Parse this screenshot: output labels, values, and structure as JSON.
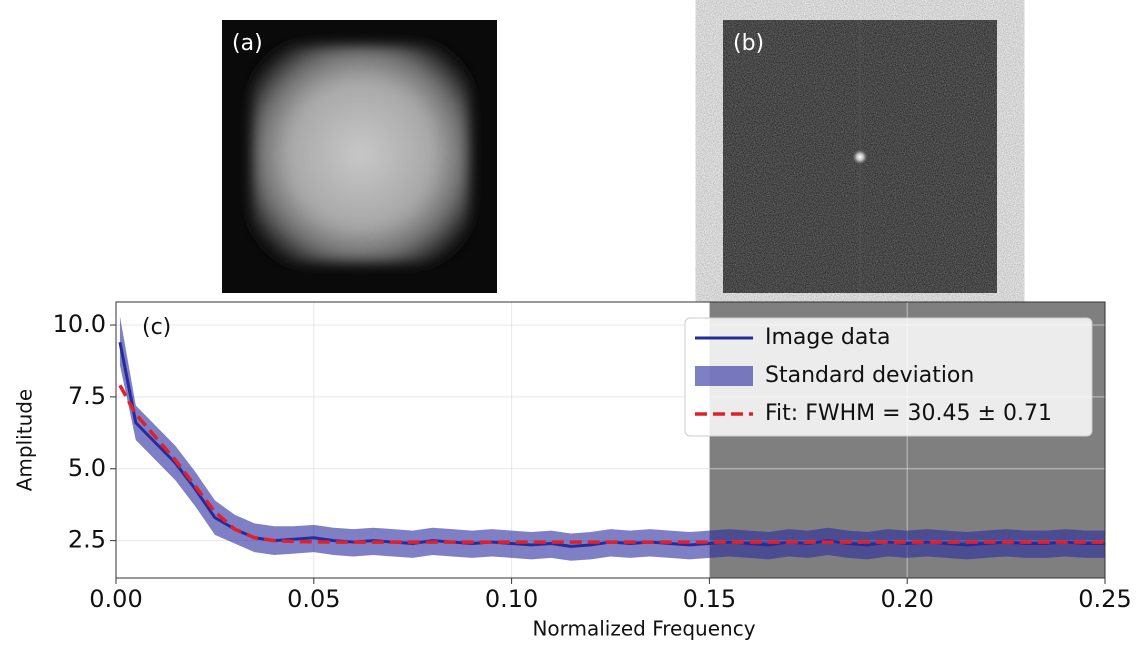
{
  "panels": [
    "(a)",
    "(b)"
  ],
  "chart_data": {
    "type": "line",
    "panel_label": "(c)",
    "x_label": "Normalized Frequency",
    "y_label": "Amplitude",
    "x": [
      0.001,
      0.005,
      0.01,
      0.015,
      0.02,
      0.025,
      0.03,
      0.035,
      0.04,
      0.045,
      0.05,
      0.055,
      0.06,
      0.065,
      0.07,
      0.075,
      0.08,
      0.085,
      0.09,
      0.095,
      0.1,
      0.105,
      0.11,
      0.115,
      0.12,
      0.125,
      0.13,
      0.135,
      0.14,
      0.145,
      0.15,
      0.155,
      0.16,
      0.165,
      0.17,
      0.175,
      0.18,
      0.185,
      0.19,
      0.195,
      0.2,
      0.205,
      0.21,
      0.215,
      0.22,
      0.225,
      0.23,
      0.235,
      0.24,
      0.245,
      0.25
    ],
    "series": [
      {
        "name": "Image data",
        "color": "#1f2f9a",
        "style": "line",
        "values": [
          9.4,
          6.6,
          5.9,
          5.2,
          4.3,
          3.3,
          2.9,
          2.6,
          2.5,
          2.55,
          2.6,
          2.5,
          2.45,
          2.5,
          2.45,
          2.4,
          2.5,
          2.45,
          2.4,
          2.45,
          2.4,
          2.35,
          2.4,
          2.3,
          2.35,
          2.45,
          2.4,
          2.45,
          2.4,
          2.35,
          2.4,
          2.45,
          2.4,
          2.35,
          2.45,
          2.4,
          2.5,
          2.4,
          2.35,
          2.45,
          2.4,
          2.45,
          2.4,
          2.35,
          2.4,
          2.45,
          2.4,
          2.4,
          2.45,
          2.4,
          2.4
        ]
      },
      {
        "name": "Standard deviation",
        "color": "#2a2aa0",
        "style": "band",
        "upper": [
          10.3,
          7.2,
          6.5,
          5.8,
          4.9,
          3.9,
          3.4,
          3.1,
          3.0,
          3.0,
          3.05,
          2.95,
          2.9,
          2.95,
          2.9,
          2.85,
          2.95,
          2.9,
          2.85,
          2.9,
          2.85,
          2.8,
          2.85,
          2.75,
          2.8,
          2.9,
          2.85,
          2.9,
          2.85,
          2.8,
          2.85,
          2.9,
          2.85,
          2.8,
          2.9,
          2.85,
          2.95,
          2.85,
          2.8,
          2.9,
          2.85,
          2.9,
          2.85,
          2.8,
          2.85,
          2.9,
          2.85,
          2.85,
          2.9,
          2.85,
          2.85
        ],
        "lower": [
          8.6,
          6.0,
          5.3,
          4.6,
          3.7,
          2.7,
          2.4,
          2.1,
          2.0,
          2.05,
          2.1,
          2.0,
          1.95,
          2.0,
          1.95,
          1.9,
          2.0,
          1.95,
          1.9,
          1.95,
          1.9,
          1.85,
          1.9,
          1.8,
          1.85,
          1.95,
          1.9,
          1.95,
          1.9,
          1.85,
          1.9,
          1.95,
          1.9,
          1.85,
          1.95,
          1.9,
          2.0,
          1.9,
          1.85,
          1.95,
          1.9,
          1.95,
          1.9,
          1.85,
          1.9,
          1.95,
          1.9,
          1.9,
          1.95,
          1.9,
          1.9
        ]
      },
      {
        "name": "Fit: FWHM = 30.45 ± 0.71",
        "color": "#e0202a",
        "style": "dashed",
        "values": [
          7.9,
          6.9,
          6.1,
          5.3,
          4.4,
          3.5,
          2.9,
          2.6,
          2.5,
          2.47,
          2.46,
          2.45,
          2.45,
          2.45,
          2.45,
          2.45,
          2.45,
          2.45,
          2.45,
          2.45,
          2.45,
          2.45,
          2.45,
          2.45,
          2.45,
          2.45,
          2.45,
          2.45,
          2.45,
          2.45,
          2.45,
          2.45,
          2.45,
          2.45,
          2.45,
          2.45,
          2.45,
          2.45,
          2.45,
          2.45,
          2.45,
          2.45,
          2.45,
          2.45,
          2.45,
          2.45,
          2.45,
          2.45,
          2.45,
          2.45,
          2.45
        ]
      }
    ],
    "xlim": [
      0,
      0.25
    ],
    "ylim": [
      1.2,
      10.8
    ],
    "xticks": [
      {
        "value": 0,
        "label": "0.00"
      },
      0.05,
      {
        "value": 0.1,
        "label": "0.10"
      },
      0.15,
      {
        "value": 0.2,
        "label": "0.20"
      },
      0.25
    ],
    "yticks": [
      2.5,
      {
        "value": 5,
        "label": "5.0"
      },
      7.5,
      {
        "value": 10,
        "label": "10.0"
      }
    ],
    "grid": true,
    "legend": "upper right",
    "shaded_xrange": [
      0.15,
      0.25
    ],
    "shade_color": "#7f7f7f"
  }
}
